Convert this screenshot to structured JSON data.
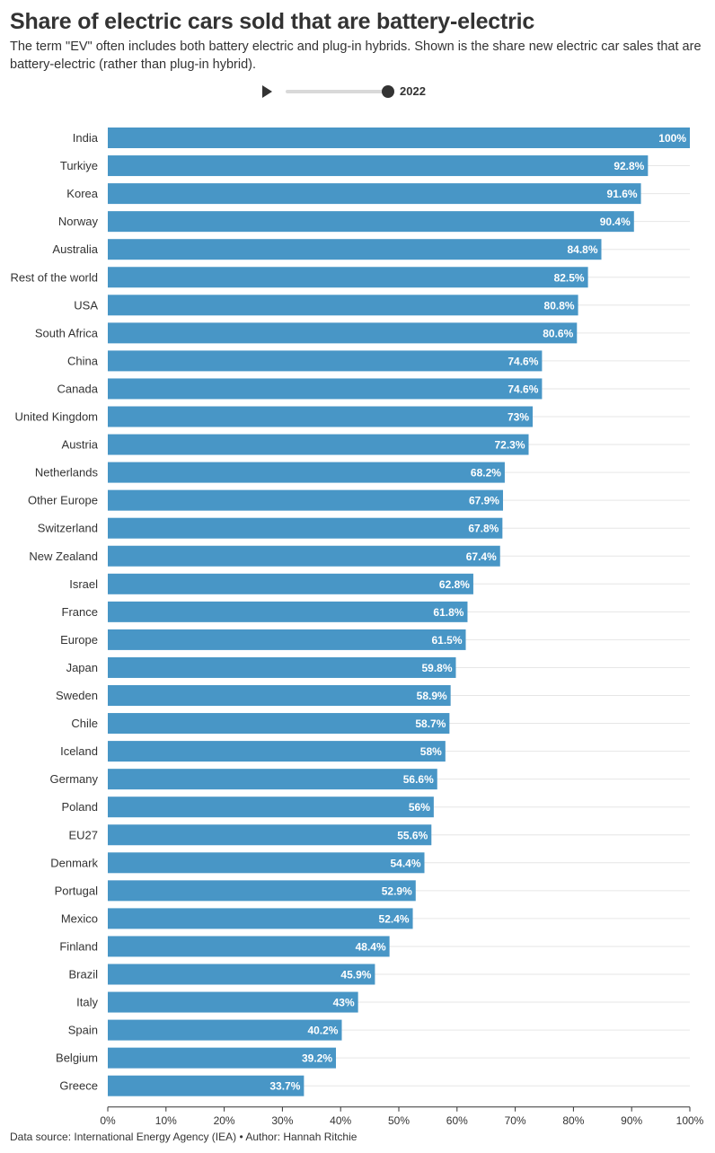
{
  "header": {
    "title": "Share of electric cars sold that are battery-electric",
    "subtitle": "The term \"EV\" often includes both battery electric and plug-in hybrids. Shown is the share new electric car sales that are battery-electric (rather than plug-in hybrid)."
  },
  "timeline": {
    "year": "2022",
    "play_icon": "play-icon"
  },
  "footer": {
    "source": "Data source: International Energy Agency (IEA) • Author: Hannah Ritchie"
  },
  "colors": {
    "bar": "#4896c6",
    "gridline": "#e6e6e6",
    "axis": "#333333"
  },
  "chart_data": {
    "type": "bar",
    "orientation": "horizontal",
    "title": "Share of electric cars sold that are battery-electric",
    "categories": [
      "India",
      "Turkiye",
      "Korea",
      "Norway",
      "Australia",
      "Rest of the world",
      "USA",
      "South Africa",
      "China",
      "Canada",
      "United Kingdom",
      "Austria",
      "Netherlands",
      "Other Europe",
      "Switzerland",
      "New Zealand",
      "Israel",
      "France",
      "Europe",
      "Japan",
      "Sweden",
      "Chile",
      "Iceland",
      "Germany",
      "Poland",
      "EU27",
      "Denmark",
      "Portugal",
      "Mexico",
      "Finland",
      "Brazil",
      "Italy",
      "Spain",
      "Belgium",
      "Greece"
    ],
    "values": [
      100,
      92.8,
      91.6,
      90.4,
      84.8,
      82.5,
      80.8,
      80.6,
      74.6,
      74.6,
      73,
      72.3,
      68.2,
      67.9,
      67.8,
      67.4,
      62.8,
      61.8,
      61.5,
      59.8,
      58.9,
      58.7,
      58,
      56.6,
      56,
      55.6,
      54.4,
      52.9,
      52.4,
      48.4,
      45.9,
      43,
      40.2,
      39.2,
      33.7
    ],
    "value_labels": [
      "100%",
      "92.8%",
      "91.6%",
      "90.4%",
      "84.8%",
      "82.5%",
      "80.8%",
      "80.6%",
      "74.6%",
      "74.6%",
      "73%",
      "72.3%",
      "68.2%",
      "67.9%",
      "67.8%",
      "67.4%",
      "62.8%",
      "61.8%",
      "61.5%",
      "59.8%",
      "58.9%",
      "58.7%",
      "58%",
      "56.6%",
      "56%",
      "55.6%",
      "54.4%",
      "52.9%",
      "52.4%",
      "48.4%",
      "45.9%",
      "43%",
      "40.2%",
      "39.2%",
      "33.7%"
    ],
    "xlim": [
      0,
      100
    ],
    "xticks": [
      "0%",
      "10%",
      "20%",
      "30%",
      "40%",
      "50%",
      "60%",
      "70%",
      "80%",
      "90%",
      "100%"
    ],
    "xlabel": "",
    "ylabel": "",
    "grid": true
  }
}
